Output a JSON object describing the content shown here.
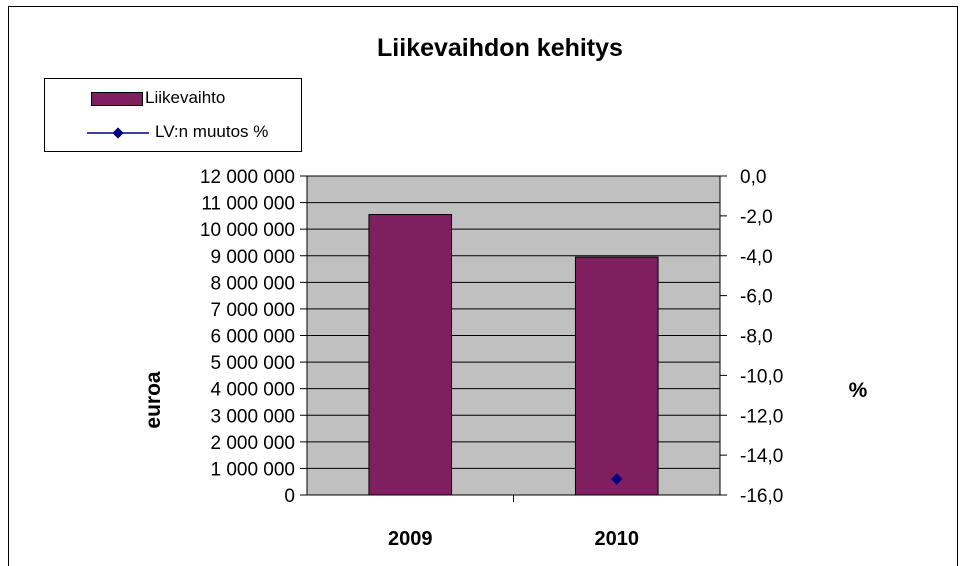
{
  "chart_data": {
    "type": "bar",
    "title": "Liikevaihdon kehitys",
    "categories": [
      "2009",
      "2010"
    ],
    "series": [
      {
        "name": "Liikevaihto",
        "type": "bar",
        "axis": "left",
        "color": "#7f1f5f",
        "values": [
          10550000,
          8950000
        ]
      },
      {
        "name": "LV:n muutos %",
        "type": "line",
        "axis": "right",
        "color": "#000080",
        "values": [
          null,
          -15.2
        ]
      }
    ],
    "ylabel": "euroa",
    "ylim": [
      0,
      12000000
    ],
    "y_ticks": [
      "0",
      "1 000 000",
      "2 000 000",
      "3 000 000",
      "4 000 000",
      "5 000 000",
      "6 000 000",
      "7 000 000",
      "8 000 000",
      "9 000 000",
      "10 000 000",
      "11 000 000",
      "12 000 000"
    ],
    "y2label": "%",
    "y2lim": [
      -16,
      0
    ],
    "y2_ticks": [
      "-16,0",
      "-14,0",
      "-12,0",
      "-10,0",
      "-8,0",
      "-6,0",
      "-4,0",
      "-2,0",
      "0,0"
    ],
    "grid": true,
    "legend": "top-left",
    "plot_background": "#c0c0c0"
  }
}
